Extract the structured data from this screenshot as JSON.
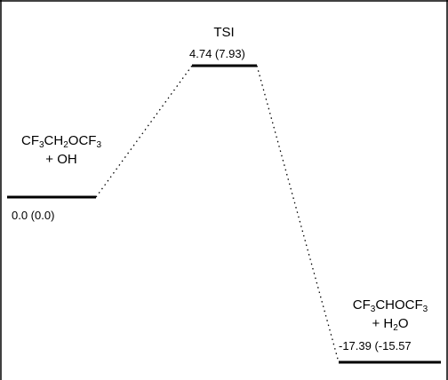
{
  "diagram": {
    "type": "reaction-energy-profile",
    "species": [
      {
        "id": "reactants",
        "name_parts": [
          "CF",
          "3",
          "CH",
          "2",
          "OCF",
          "3"
        ],
        "second_line": "+ OH",
        "energy_text": "0.0 (0.0)",
        "energy": 0.0
      },
      {
        "id": "transition-state",
        "name_parts": [
          "TSI"
        ],
        "second_line": "",
        "energy_text": "4.74 (7.93)",
        "energy": 4.74
      },
      {
        "id": "products",
        "name_parts": [
          "CF",
          "3",
          "CHOCF",
          "3"
        ],
        "second_line_parts": [
          "+ H",
          "2",
          "O"
        ],
        "energy_text": "-17.39 (-15.57",
        "energy": -17.39
      }
    ],
    "colors": {
      "line": "#000000",
      "frame": "#000000",
      "background": "#ffffff"
    }
  }
}
